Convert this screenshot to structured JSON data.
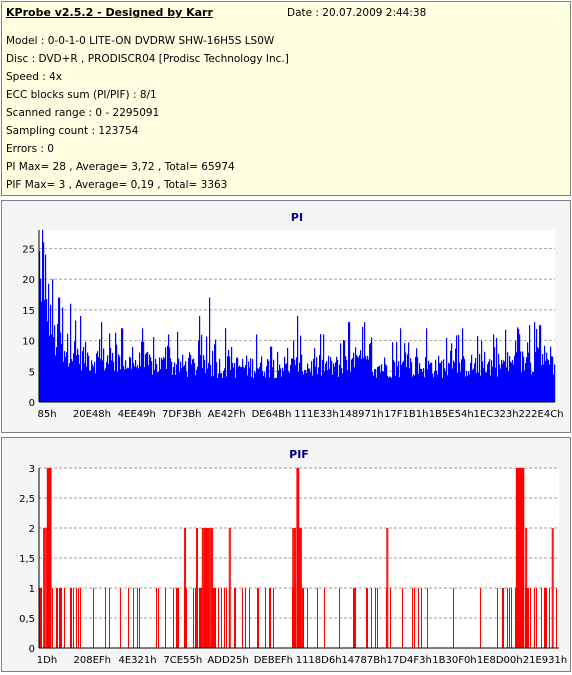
{
  "info": {
    "title": "KProbe v2.5.2 - Designed by Karr",
    "date": "Date : 20.07.2009 2:44:38",
    "lines": [
      "Model : 0-0-1-0 LITE-ON DVDRW SHW-16H5S  LS0W",
      "Disc : DVD+R , PRODISCR04 [Prodisc Technology Inc.]",
      "Speed : 4x",
      "ECC blocks sum (PI/PIF) : 8/1",
      "Scanned range : 0 - 2295091",
      "Sampling count : 123754",
      "Errors : 0",
      "PI Max= 28 , Average= 3,72 , Total= 65974",
      "PIF Max= 3 , Average= 0,19 , Total= 3363"
    ]
  },
  "colors": {
    "pi": "#0000ff",
    "pif": "#ff0000",
    "title": "#000080",
    "grid": "#808080"
  },
  "chart_data": [
    {
      "type": "bar",
      "title": "PI",
      "ylim": [
        0,
        28
      ],
      "yticks": [
        "0",
        "5",
        "10",
        "15",
        "20",
        "25"
      ],
      "ytick_values": [
        0,
        5,
        10,
        15,
        20,
        25
      ],
      "xticks": [
        "85h",
        "20E48h",
        "4EE49h",
        "7DF3Bh",
        "AE42Fh",
        "DE64Bh",
        "111E33h",
        "148971h",
        "17F1B1h",
        "1B5E54h",
        "1EC323h",
        "222E4Ch"
      ],
      "grid": true,
      "profile": [
        [
          0,
          27
        ],
        [
          0.5,
          15
        ],
        [
          1.5,
          20
        ],
        [
          3,
          12
        ],
        [
          6,
          10
        ],
        [
          10,
          8.5
        ],
        [
          15,
          8
        ],
        [
          20,
          7.5
        ],
        [
          30,
          7
        ],
        [
          40,
          7
        ],
        [
          50,
          7
        ],
        [
          60,
          7
        ],
        [
          62,
          8
        ],
        [
          64,
          7
        ],
        [
          70,
          7
        ],
        [
          80,
          7
        ],
        [
          90,
          7.5
        ],
        [
          95,
          8
        ],
        [
          97,
          9
        ],
        [
          100,
          7.5
        ]
      ],
      "spikes": [
        [
          0.6,
          28
        ],
        [
          0.8,
          26
        ],
        [
          1.2,
          24
        ],
        [
          2.5,
          20
        ],
        [
          3.8,
          17
        ],
        [
          6,
          16
        ],
        [
          8,
          14
        ],
        [
          12,
          13
        ],
        [
          16,
          12
        ],
        [
          20,
          12
        ],
        [
          25,
          11
        ],
        [
          31,
          14
        ],
        [
          33,
          17
        ],
        [
          36,
          12
        ],
        [
          42,
          11
        ],
        [
          50,
          14
        ],
        [
          55,
          11
        ],
        [
          60,
          13
        ],
        [
          63,
          13
        ],
        [
          70,
          12
        ],
        [
          75,
          12
        ],
        [
          82,
          12
        ],
        [
          88,
          11
        ],
        [
          93,
          11
        ],
        [
          96,
          13
        ],
        [
          97,
          12.5
        ],
        [
          99,
          9
        ]
      ]
    },
    {
      "type": "bar",
      "title": "PIF",
      "ylim": [
        0,
        3
      ],
      "yticks": [
        "0",
        "0,5",
        "1",
        "1,5",
        "2",
        "2,5",
        "3"
      ],
      "ytick_values": [
        0,
        0.5,
        1,
        1.5,
        2,
        2.5,
        3
      ],
      "xticks": [
        "1Dh",
        "208EFh",
        "4E321h",
        "7CE55h",
        "ADD25h",
        "DEBEFh",
        "1118D6h",
        "14787Bh",
        "17D4F3h",
        "1B30F0h",
        "1E8D00h",
        "21E931h"
      ],
      "grid": true,
      "three_ranges": [
        [
          1.5,
          2.3
        ],
        [
          49.5,
          49.9
        ],
        [
          91.7,
          93.2
        ]
      ],
      "two_ranges": [
        [
          0.8,
          1.1
        ],
        [
          1.2,
          1.9
        ],
        [
          27.9,
          28.2
        ],
        [
          30.2,
          30.5
        ],
        [
          31.3,
          33.4
        ],
        [
          36.5,
          36.8
        ],
        [
          48.7,
          49.4
        ],
        [
          50,
          50.5
        ],
        [
          66.8,
          67.1
        ],
        [
          93.5,
          93.8
        ],
        [
          98.6,
          98.9
        ]
      ],
      "one_density": [
        [
          0,
          0.3
        ],
        [
          3,
          0.4
        ],
        [
          6,
          0.25
        ],
        [
          10,
          0.2
        ],
        [
          14,
          0.18
        ],
        [
          18,
          0.15
        ],
        [
          22,
          0.14
        ],
        [
          27,
          0.3
        ],
        [
          31,
          0.7
        ],
        [
          35,
          0.25
        ],
        [
          40,
          0.15
        ],
        [
          45,
          0.12
        ],
        [
          48,
          0.25
        ],
        [
          50,
          0.6
        ],
        [
          53,
          0.2
        ],
        [
          57,
          0.12
        ],
        [
          62,
          0.12
        ],
        [
          67,
          0.15
        ],
        [
          72,
          0.1
        ],
        [
          78,
          0.08
        ],
        [
          84,
          0.1
        ],
        [
          89,
          0.15
        ],
        [
          91,
          0.5
        ],
        [
          95,
          0.3
        ],
        [
          100,
          0.3
        ]
      ]
    }
  ]
}
